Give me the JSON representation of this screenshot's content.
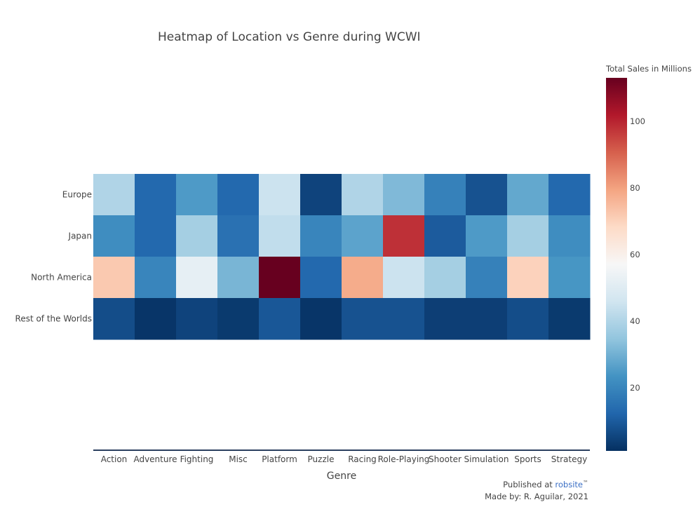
{
  "chart_data": {
    "type": "heatmap",
    "title": "Heatmap of Location vs Genre during WCWI",
    "xlabel": "Genre",
    "ylabel": "",
    "x_categories": [
      "Action",
      "Adventure",
      "Fighting",
      "Misc",
      "Platform",
      "Puzzle",
      "Racing",
      "Role-Playing",
      "Shooter",
      "Simulation",
      "Sports",
      "Strategy"
    ],
    "y_categories": [
      "Europe",
      "Japan",
      "North America",
      "Rest of the Worlds"
    ],
    "values": [
      [
        40,
        13,
        25,
        13,
        45,
        5,
        40,
        32,
        19,
        8,
        28,
        13
      ],
      [
        22,
        13,
        38,
        15,
        43,
        20,
        27,
        98,
        10,
        25,
        38,
        22
      ],
      [
        72,
        20,
        52,
        31,
        113,
        13,
        78,
        45,
        38,
        19,
        70,
        24
      ],
      [
        7,
        2,
        5,
        3,
        9,
        2,
        8,
        8,
        4,
        4,
        7,
        3
      ]
    ],
    "colorscale": "RdBu reversed",
    "zmin": 1,
    "zmax": 113,
    "colorbar": {
      "title": "Total Sales in Millions",
      "ticks": [
        20,
        40,
        60,
        80,
        100
      ]
    }
  },
  "footer": {
    "published_prefix": "Published at ",
    "published_link": "robsite",
    "published_trademark": "™",
    "made_by": "Made by: R. Aguilar, 2021"
  },
  "colors": {
    "axis_line": "#2a3f5f",
    "link": "#3b6fc5"
  }
}
